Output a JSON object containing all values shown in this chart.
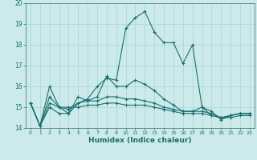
{
  "title": "",
  "xlabel": "Humidex (Indice chaleur)",
  "background_color": "#cceaea",
  "grid_color": "#aad4d4",
  "line_color": "#1a6e6e",
  "xlim": [
    -0.5,
    23.5
  ],
  "ylim": [
    14,
    20
  ],
  "yticks": [
    14,
    15,
    16,
    17,
    18,
    19,
    20
  ],
  "xticks": [
    0,
    1,
    2,
    3,
    4,
    5,
    6,
    7,
    8,
    9,
    10,
    11,
    12,
    13,
    14,
    15,
    16,
    17,
    18,
    19,
    20,
    21,
    22,
    23
  ],
  "series": [
    [
      15.2,
      14.1,
      15.0,
      14.7,
      14.7,
      15.2,
      15.4,
      16.0,
      16.4,
      16.3,
      18.8,
      19.3,
      19.6,
      18.6,
      18.1,
      18.1,
      17.1,
      18.0,
      15.0,
      14.8,
      14.4,
      14.6,
      14.7,
      14.7
    ],
    [
      15.2,
      14.1,
      16.0,
      15.0,
      14.7,
      15.5,
      15.3,
      15.5,
      16.5,
      16.0,
      16.0,
      16.3,
      16.1,
      15.8,
      15.4,
      15.1,
      14.8,
      14.8,
      15.0,
      14.6,
      14.5,
      14.6,
      14.7,
      14.7
    ],
    [
      15.2,
      14.1,
      15.5,
      15.0,
      14.9,
      15.2,
      15.3,
      15.3,
      15.5,
      15.5,
      15.4,
      15.4,
      15.3,
      15.2,
      15.0,
      14.9,
      14.8,
      14.8,
      14.8,
      14.7,
      14.5,
      14.6,
      14.7,
      14.7
    ],
    [
      15.2,
      14.1,
      15.2,
      15.0,
      15.0,
      15.0,
      15.1,
      15.1,
      15.2,
      15.2,
      15.1,
      15.1,
      15.1,
      15.0,
      14.9,
      14.8,
      14.7,
      14.7,
      14.7,
      14.6,
      14.5,
      14.5,
      14.6,
      14.6
    ]
  ]
}
